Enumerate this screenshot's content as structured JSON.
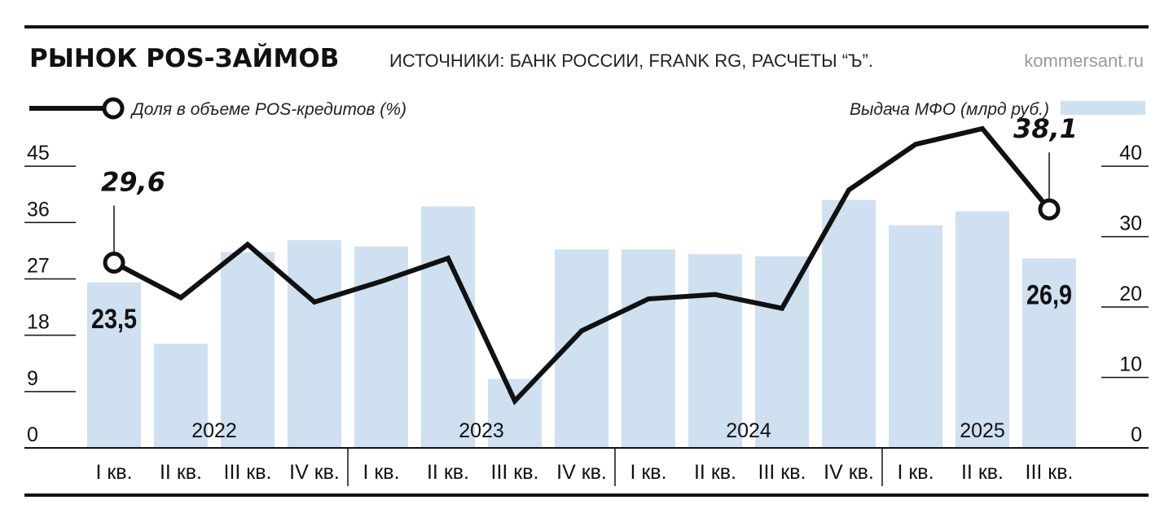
{
  "header": {
    "title": "РЫНОК POS-ЗАЙМОВ",
    "sources": "ИСТОЧНИКИ: БАНК РОССИИ, FRANK RG, РАСЧЕТЫ “Ъ”.",
    "site": "kommersant.ru"
  },
  "colors": {
    "bar": "#cfe0f0",
    "line": "#111111",
    "rule": "#111111",
    "site_text": "#9a9a9a"
  },
  "chart_data": {
    "type": "bar",
    "categories": [
      "I кв.",
      "II кв.",
      "III кв.",
      "IV кв.",
      "I кв.",
      "II кв.",
      "III кв.",
      "IV кв.",
      "I кв.",
      "II кв.",
      "III кв.",
      "IV кв.",
      "I кв.",
      "II кв.",
      "III кв."
    ],
    "years": [
      {
        "label": "2022",
        "start": 0,
        "end": 3
      },
      {
        "label": "2023",
        "start": 4,
        "end": 7
      },
      {
        "label": "2024",
        "start": 8,
        "end": 11
      },
      {
        "label": "2025",
        "start": 12,
        "end": 14
      }
    ],
    "series": [
      {
        "name": "Выдача МФО (млрд руб.)",
        "type": "bar",
        "axis": "right",
        "values": [
          23.5,
          14.8,
          27.8,
          29.5,
          28.6,
          34.3,
          9.8,
          28.2,
          28.2,
          27.5,
          27.2,
          35.2,
          31.6,
          33.6,
          26.9
        ]
      },
      {
        "name": "Доля в объеме POS-кредитов (%)",
        "type": "line",
        "axis": "left",
        "values": [
          29.6,
          24.0,
          32.5,
          23.3,
          26.6,
          30.3,
          7.5,
          18.7,
          23.8,
          24.5,
          22.3,
          41.2,
          48.5,
          51.0,
          38.1
        ]
      }
    ],
    "annotations": [
      {
        "series": 1,
        "index": 0,
        "label": "29,6"
      },
      {
        "series": 1,
        "index": 14,
        "label": "38,1"
      },
      {
        "series": 0,
        "index": 0,
        "label": "23,5"
      },
      {
        "series": 0,
        "index": 14,
        "label": "26,9"
      }
    ],
    "y_left": {
      "ticks": [
        0,
        9,
        18,
        27,
        36,
        45
      ],
      "range": [
        0,
        51
      ]
    },
    "y_right": {
      "ticks": [
        0,
        10,
        20,
        30,
        40
      ],
      "range": [
        0,
        45.33
      ]
    },
    "legend": {
      "line_label": "Доля в объеме POS-кредитов (%)",
      "bar_label": "Выдача МФО (млрд руб.)"
    },
    "grid": false
  }
}
